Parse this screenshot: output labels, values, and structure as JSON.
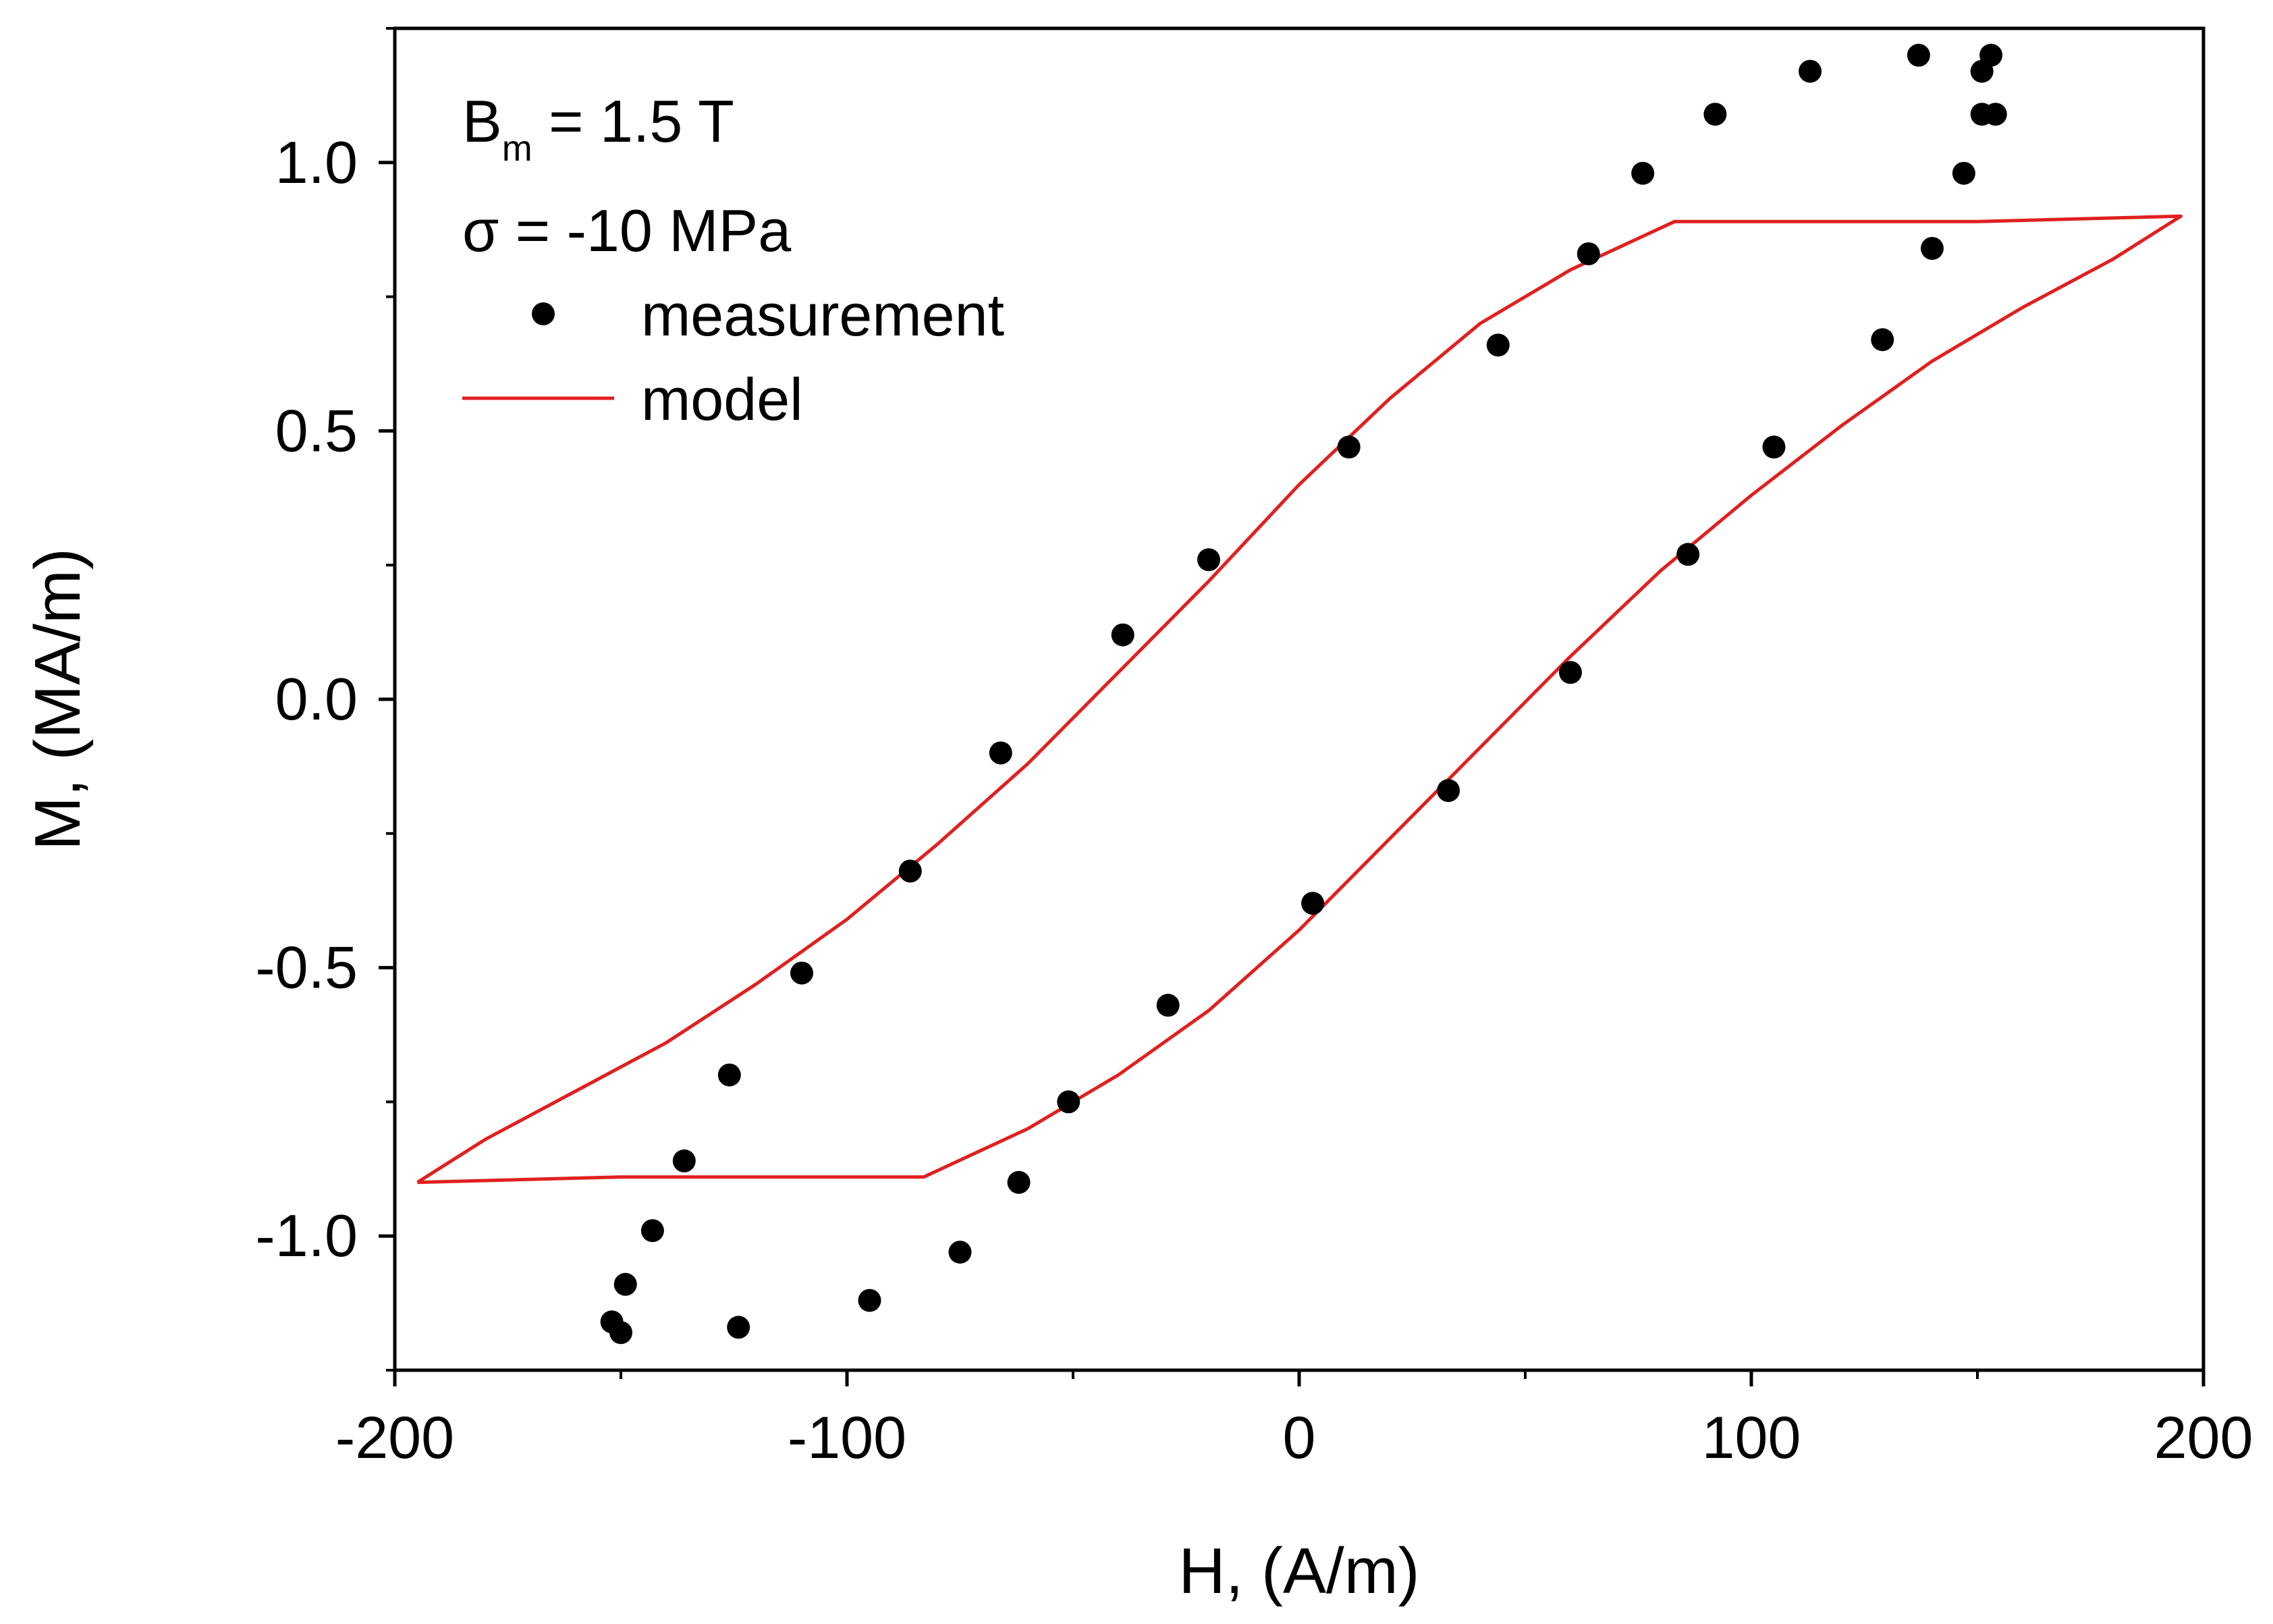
{
  "chart_data": {
    "type": "scatter",
    "title": "",
    "xlabel": "H, (A/m)",
    "ylabel": "M, (MA/m)",
    "xlim": [
      -200,
      200
    ],
    "ylim": [
      -1.25,
      1.25
    ],
    "xticks": [
      -200,
      -100,
      0,
      100,
      200
    ],
    "xtick_labels": [
      "-200",
      "-100",
      "0",
      "100",
      "200"
    ],
    "yticks": [
      -1.0,
      -0.5,
      0.0,
      0.5,
      1.0
    ],
    "ytick_labels": [
      "-1.0",
      "-0.5",
      "0.0",
      "0.5",
      "1.0"
    ],
    "grid": false,
    "annotations": {
      "bm_symbol": "B",
      "bm_subscript": "m",
      "bm_value": " = 1.5 T",
      "sigma_label": "σ = -10 MPa"
    },
    "legend": {
      "placement": "top-left",
      "entries": [
        "measurement",
        "model"
      ]
    },
    "series": [
      {
        "name": "measurement",
        "kind": "scatter",
        "color": "#000000",
        "x": [
          153,
          151,
          137,
          154,
          151,
          147,
          113,
          92,
          140,
          76,
          129,
          64,
          105,
          44,
          86,
          11,
          60,
          -20,
          33,
          -39,
          3,
          -66,
          -29,
          -86,
          -51,
          -110,
          -62,
          -126,
          -75,
          -136,
          -95,
          -143,
          -124,
          -149,
          -150,
          -152
        ],
        "y": [
          1.2,
          1.17,
          1.2,
          1.09,
          1.09,
          0.98,
          1.17,
          1.09,
          0.84,
          0.98,
          0.67,
          0.83,
          0.47,
          0.66,
          0.27,
          0.47,
          0.05,
          0.26,
          -0.17,
          0.12,
          -0.38,
          -0.1,
          -0.57,
          -0.32,
          -0.75,
          -0.51,
          -0.9,
          -0.7,
          -1.03,
          -0.86,
          -1.12,
          -0.99,
          -1.17,
          -1.09,
          -1.18,
          -1.16
        ]
      },
      {
        "name": "model",
        "kind": "line",
        "color": "#e02020",
        "x": [
          -195,
          -180,
          -160,
          -140,
          -120,
          -100,
          -80,
          -60,
          -40,
          -20,
          0,
          20,
          40,
          60,
          83,
          100,
          150,
          195,
          180,
          160,
          140,
          120,
          100,
          80,
          60,
          40,
          20,
          0,
          -20,
          -40,
          -60,
          -83,
          -100,
          -150,
          -195
        ],
        "y": [
          -0.9,
          -0.82,
          -0.73,
          -0.64,
          -0.53,
          -0.41,
          -0.27,
          -0.12,
          0.05,
          0.22,
          0.4,
          0.56,
          0.7,
          0.8,
          0.89,
          0.89,
          0.89,
          0.9,
          0.82,
          0.73,
          0.63,
          0.51,
          0.38,
          0.24,
          0.08,
          -0.09,
          -0.26,
          -0.43,
          -0.58,
          -0.7,
          -0.8,
          -0.89,
          -0.89,
          -0.89,
          -0.9
        ]
      }
    ]
  }
}
